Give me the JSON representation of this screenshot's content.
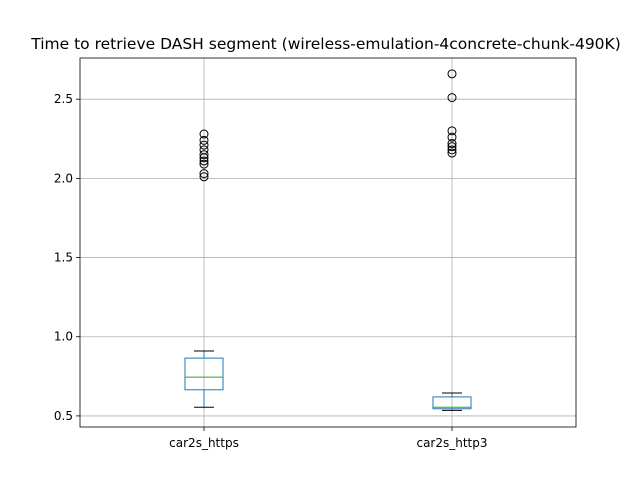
{
  "chart_data": {
    "type": "boxplot",
    "title": "Time to retrieve DASH segment (wireless-emulation-4concrete-chunk-490K)",
    "xlabel": "",
    "ylabel": "",
    "categories": [
      "car2s_https",
      "car2s_http3"
    ],
    "ylim": [
      0.43,
      2.76
    ],
    "yticks": [
      0.5,
      1.0,
      1.5,
      2.0,
      2.5
    ],
    "ytick_labels": [
      "0.5",
      "1.0",
      "1.5",
      "2.0",
      "2.5"
    ],
    "grid": true,
    "series": [
      {
        "category": "car2s_https",
        "whisker_low": 0.555,
        "q1": 0.665,
        "median": 0.745,
        "q3": 0.865,
        "whisker_high": 0.91,
        "outliers": [
          2.01,
          2.03,
          2.09,
          2.11,
          2.13,
          2.15,
          2.18,
          2.21,
          2.24,
          2.28
        ]
      },
      {
        "category": "car2s_http3",
        "whisker_low": 0.535,
        "q1": 0.545,
        "median": 0.555,
        "q3": 0.62,
        "whisker_high": 0.645,
        "outliers": [
          2.16,
          2.18,
          2.2,
          2.22,
          2.26,
          2.3,
          2.51,
          2.66
        ]
      }
    ],
    "colors": {
      "box": "#1f77b4",
      "median": "#2ca02c",
      "whisker": "#000000",
      "grid": "#b0b0b0"
    }
  }
}
